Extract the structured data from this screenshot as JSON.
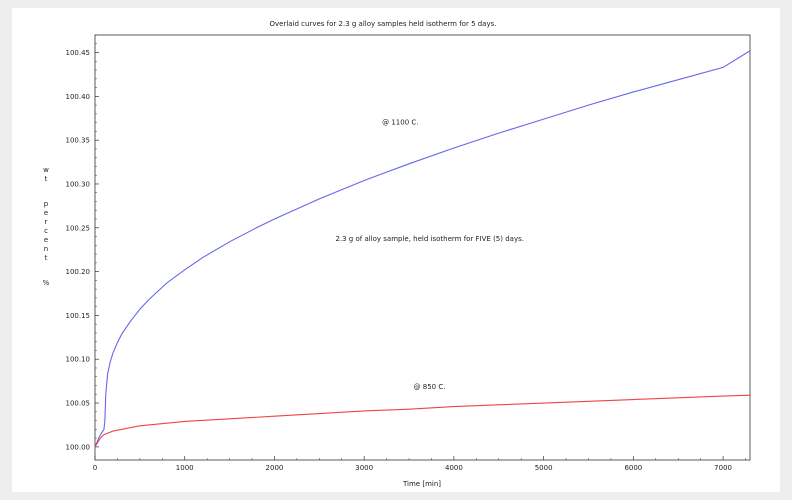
{
  "chart_data": {
    "type": "line",
    "title": "Overlaid curves for 2.3 g alloy samples held isotherm for 5 days.",
    "xlabel": "Time [min]",
    "ylabel": "wt percent %",
    "xlim": [
      0,
      7300
    ],
    "ylim": [
      99.985,
      100.47
    ],
    "x_ticks": [
      0,
      1000,
      2000,
      3000,
      4000,
      5000,
      6000,
      7000
    ],
    "y_ticks": [
      100.0,
      100.05,
      100.1,
      100.15,
      100.2,
      100.25,
      100.3,
      100.35,
      100.4,
      100.45
    ],
    "y_tick_labels": [
      "100.00",
      "100.05",
      "100.10",
      "100.15",
      "100.20",
      "100.25",
      "100.30",
      "100.35",
      "100.40",
      "100.45"
    ],
    "grid": false,
    "annotations": [
      {
        "text": "@ 1100 C.",
        "x": 3200,
        "y": 100.368
      },
      {
        "text": "2.3 g of alloy sample, held isotherm for FIVE (5) days.",
        "x": 2680,
        "y": 100.235
      },
      {
        "text": "@ 850 C.",
        "x": 3550,
        "y": 100.066
      }
    ],
    "series": [
      {
        "color": "#6666ee",
        "x": [
          0,
          50,
          100,
          110,
          120,
          140,
          170,
          200,
          250,
          300,
          400,
          500,
          600,
          800,
          1000,
          1200,
          1500,
          1800,
          2000,
          2500,
          3000,
          3500,
          4000,
          4500,
          5000,
          5500,
          6000,
          6500,
          7000,
          7300
        ],
        "y": [
          100.0,
          100.012,
          100.02,
          100.03,
          100.06,
          100.083,
          100.097,
          100.107,
          100.119,
          100.129,
          100.144,
          100.157,
          100.168,
          100.187,
          100.202,
          100.216,
          100.234,
          100.25,
          100.26,
          100.283,
          100.304,
          100.323,
          100.341,
          100.358,
          100.374,
          100.39,
          100.405,
          100.419,
          100.433,
          100.452
        ]
      },
      {
        "color": "#ee4444",
        "x": [
          0,
          30,
          60,
          100,
          150,
          200,
          300,
          500,
          800,
          1000,
          1500,
          2000,
          2500,
          3000,
          3500,
          4000,
          4500,
          5000,
          5500,
          6000,
          6500,
          7000,
          7300
        ],
        "y": [
          100.0,
          100.005,
          100.01,
          100.014,
          100.016,
          100.018,
          100.02,
          100.024,
          100.027,
          100.029,
          100.032,
          100.035,
          100.038,
          100.041,
          100.043,
          100.046,
          100.048,
          100.05,
          100.052,
          100.054,
          100.056,
          100.058,
          100.059
        ]
      }
    ]
  }
}
